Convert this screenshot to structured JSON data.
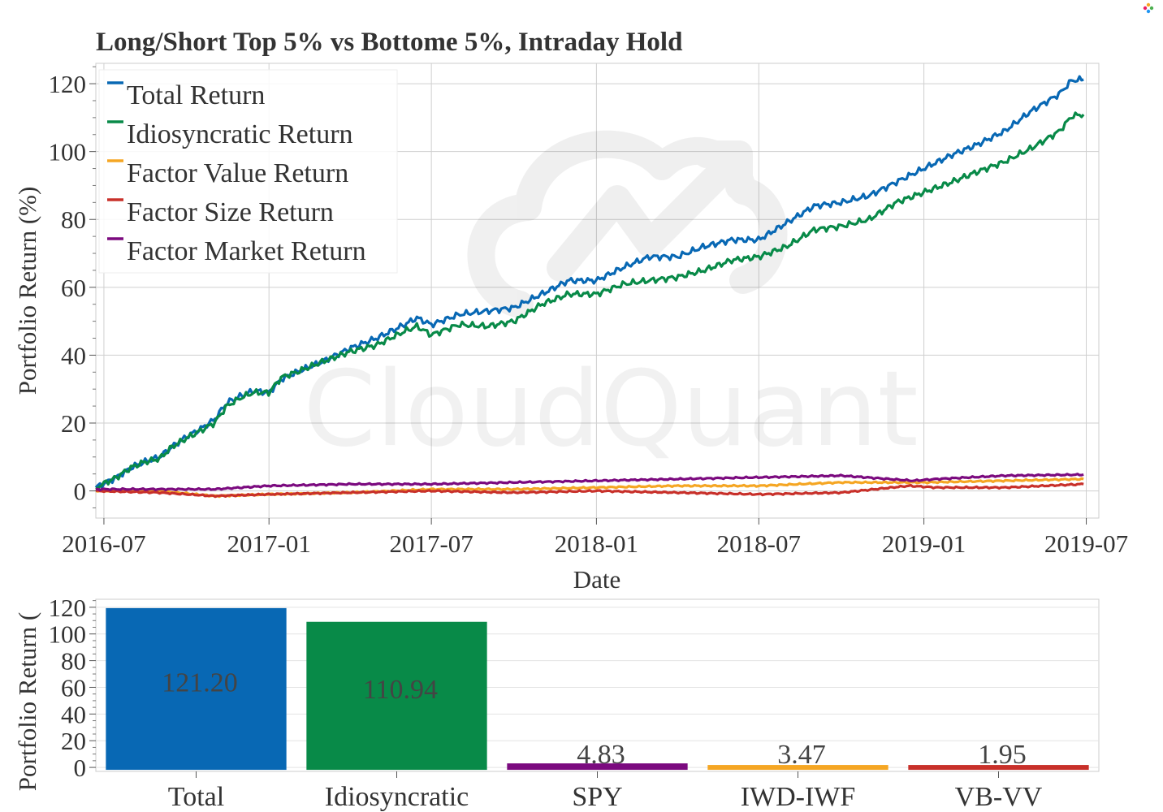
{
  "chart_data": [
    {
      "type": "line",
      "title": "Long/Short Top 5% vs Bottome 5%, Intraday Hold",
      "xlabel": "Date",
      "ylabel": "Portfolio Return (%)",
      "xlim": [
        "2016-06-22",
        "2019-07-15"
      ],
      "ylim": [
        -8,
        126
      ],
      "x_ticks": [
        "2016-07",
        "2017-01",
        "2017-07",
        "2018-01",
        "2018-07",
        "2019-01",
        "2019-07"
      ],
      "y_ticks": [
        0,
        20,
        40,
        60,
        80,
        100,
        120
      ],
      "grid": true,
      "legend_position": "top-left",
      "series": [
        {
          "name": "Total Return",
          "color": "#0868b4",
          "points": [
            [
              "2016-06-22",
              1
            ],
            [
              "2016-07-15",
              4
            ],
            [
              "2016-08-01",
              7
            ],
            [
              "2016-08-15",
              8.5
            ],
            [
              "2016-09-01",
              10
            ],
            [
              "2016-09-15",
              13
            ],
            [
              "2016-10-01",
              16
            ],
            [
              "2016-10-15",
              18
            ],
            [
              "2016-11-01",
              21
            ],
            [
              "2016-11-15",
              26
            ],
            [
              "2016-12-01",
              28
            ],
            [
              "2016-12-15",
              29.5
            ],
            [
              "2017-01-01",
              29
            ],
            [
              "2017-01-15",
              33
            ],
            [
              "2017-02-01",
              35
            ],
            [
              "2017-03-01",
              38
            ],
            [
              "2017-04-01",
              42
            ],
            [
              "2017-05-01",
              45
            ],
            [
              "2017-06-01",
              49
            ],
            [
              "2017-06-15",
              51
            ],
            [
              "2017-07-01",
              49
            ],
            [
              "2017-08-01",
              52
            ],
            [
              "2017-09-01",
              53
            ],
            [
              "2017-10-01",
              54
            ],
            [
              "2017-11-01",
              58
            ],
            [
              "2017-12-01",
              62
            ],
            [
              "2018-01-01",
              62
            ],
            [
              "2018-02-01",
              66
            ],
            [
              "2018-03-01",
              69
            ],
            [
              "2018-04-01",
              69
            ],
            [
              "2018-05-01",
              72
            ],
            [
              "2018-06-01",
              74
            ],
            [
              "2018-07-01",
              74
            ],
            [
              "2018-08-01",
              79
            ],
            [
              "2018-09-01",
              84
            ],
            [
              "2018-10-01",
              85
            ],
            [
              "2018-11-01",
              87
            ],
            [
              "2018-12-01",
              91
            ],
            [
              "2019-01-01",
              95
            ],
            [
              "2019-02-01",
              99
            ],
            [
              "2019-03-01",
              102
            ],
            [
              "2019-04-01",
              106
            ],
            [
              "2019-05-01",
              112
            ],
            [
              "2019-06-01",
              117
            ],
            [
              "2019-06-15",
              121
            ],
            [
              "2019-06-28",
              121.2
            ]
          ]
        },
        {
          "name": "Idiosyncratic Return",
          "color": "#088a48",
          "points": [
            [
              "2016-06-22",
              1
            ],
            [
              "2016-07-15",
              4
            ],
            [
              "2016-08-01",
              7
            ],
            [
              "2016-08-15",
              8.5
            ],
            [
              "2016-09-01",
              9.5
            ],
            [
              "2016-09-15",
              13
            ],
            [
              "2016-10-01",
              15.5
            ],
            [
              "2016-10-15",
              17.5
            ],
            [
              "2016-11-01",
              20
            ],
            [
              "2016-11-15",
              25
            ],
            [
              "2016-12-01",
              27.5
            ],
            [
              "2016-12-15",
              29
            ],
            [
              "2017-01-01",
              29
            ],
            [
              "2017-01-15",
              33.5
            ],
            [
              "2017-02-01",
              35
            ],
            [
              "2017-03-01",
              38
            ],
            [
              "2017-04-01",
              41
            ],
            [
              "2017-05-01",
              43
            ],
            [
              "2017-06-01",
              47
            ],
            [
              "2017-06-15",
              48.5
            ],
            [
              "2017-07-01",
              46
            ],
            [
              "2017-08-01",
              49
            ],
            [
              "2017-09-01",
              48.5
            ],
            [
              "2017-10-01",
              50
            ],
            [
              "2017-11-01",
              55
            ],
            [
              "2017-12-01",
              58
            ],
            [
              "2018-01-01",
              58
            ],
            [
              "2018-02-01",
              61
            ],
            [
              "2018-03-01",
              62
            ],
            [
              "2018-04-01",
              63
            ],
            [
              "2018-05-01",
              65
            ],
            [
              "2018-06-01",
              68
            ],
            [
              "2018-07-01",
              69
            ],
            [
              "2018-08-01",
              72
            ],
            [
              "2018-09-01",
              77
            ],
            [
              "2018-10-01",
              78
            ],
            [
              "2018-11-01",
              80
            ],
            [
              "2018-12-01",
              85
            ],
            [
              "2019-01-01",
              88
            ],
            [
              "2019-02-01",
              91
            ],
            [
              "2019-03-01",
              94
            ],
            [
              "2019-04-01",
              97
            ],
            [
              "2019-05-01",
              101
            ],
            [
              "2019-06-01",
              106
            ],
            [
              "2019-06-15",
              110.5
            ],
            [
              "2019-06-28",
              110.9
            ]
          ]
        },
        {
          "name": "Factor Value Return",
          "color": "#f5a623",
          "points": [
            [
              "2016-06-22",
              0
            ],
            [
              "2016-09-01",
              0
            ],
            [
              "2016-11-01",
              -1.5
            ],
            [
              "2017-01-01",
              -1
            ],
            [
              "2017-04-01",
              -0.5
            ],
            [
              "2017-07-01",
              0.5
            ],
            [
              "2017-10-01",
              0.5
            ],
            [
              "2018-01-01",
              1
            ],
            [
              "2018-04-01",
              1.5
            ],
            [
              "2018-07-01",
              1.5
            ],
            [
              "2018-10-01",
              2.5
            ],
            [
              "2019-01-01",
              2.5
            ],
            [
              "2019-04-01",
              3
            ],
            [
              "2019-06-28",
              3.5
            ]
          ]
        },
        {
          "name": "Factor Size Return",
          "color": "#c8302a",
          "points": [
            [
              "2016-06-22",
              0
            ],
            [
              "2016-09-01",
              -0.5
            ],
            [
              "2016-11-01",
              -1.5
            ],
            [
              "2017-01-01",
              -1
            ],
            [
              "2017-04-01",
              -0.5
            ],
            [
              "2017-07-01",
              0
            ],
            [
              "2017-10-01",
              -0.5
            ],
            [
              "2018-01-01",
              0
            ],
            [
              "2018-04-01",
              -0.5
            ],
            [
              "2018-07-01",
              -1
            ],
            [
              "2018-10-01",
              -0.5
            ],
            [
              "2018-12-15",
              1.5
            ],
            [
              "2019-01-15",
              1
            ],
            [
              "2019-04-01",
              1
            ],
            [
              "2019-06-28",
              2
            ]
          ]
        },
        {
          "name": "Factor Market Return",
          "color": "#7b0a7f",
          "points": [
            [
              "2016-06-22",
              0.5
            ],
            [
              "2016-09-01",
              0.5
            ],
            [
              "2016-11-01",
              0.5
            ],
            [
              "2017-01-01",
              1.5
            ],
            [
              "2017-04-01",
              2
            ],
            [
              "2017-07-01",
              2
            ],
            [
              "2017-10-01",
              2.5
            ],
            [
              "2018-01-01",
              3
            ],
            [
              "2018-04-01",
              3.5
            ],
            [
              "2018-07-01",
              4
            ],
            [
              "2018-10-01",
              4.5
            ],
            [
              "2018-12-20",
              3
            ],
            [
              "2019-01-15",
              3.5
            ],
            [
              "2019-04-01",
              4.5
            ],
            [
              "2019-06-28",
              4.8
            ]
          ]
        }
      ]
    },
    {
      "type": "bar",
      "ylabel": "Portfolio Return (",
      "categories": [
        "Total",
        "Idiosyncratic",
        "SPY",
        "IWD-IWF",
        "VB-VV"
      ],
      "values": [
        121.2,
        110.94,
        4.83,
        3.47,
        1.95
      ],
      "value_labels": [
        "121.20",
        "110.94",
        "4.83",
        "3.47",
        "1.95"
      ],
      "colors": [
        "#0868b4",
        "#088a48",
        "#7b0a7f",
        "#f5a623",
        "#c8302a"
      ],
      "ylim": [
        -3,
        126
      ],
      "y_ticks": [
        0,
        20,
        40,
        60,
        80,
        100,
        120
      ],
      "grid": true
    }
  ],
  "watermark": {
    "text": "CloudQuant"
  },
  "logo": {
    "name": "cloudquant-logo-icon"
  }
}
